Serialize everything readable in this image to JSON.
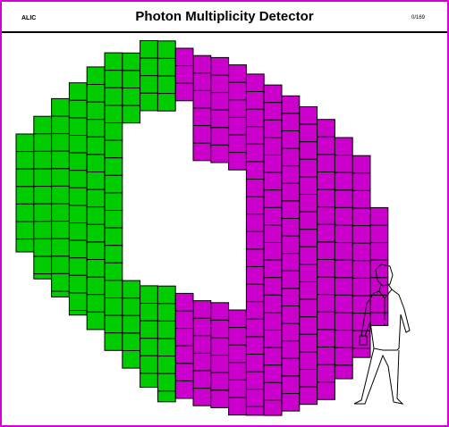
{
  "header": {
    "left_label": "ALIC",
    "title": "Photon Multiplicity Detector",
    "right_label": "0/169"
  },
  "colors": {
    "border": "#d600d6",
    "left_half": "#00cc00",
    "right_half": "#cc00cc",
    "grid_line": "#000000",
    "person_outline": "#000000"
  },
  "icons": {
    "person": "human-scale-figure-icon"
  }
}
